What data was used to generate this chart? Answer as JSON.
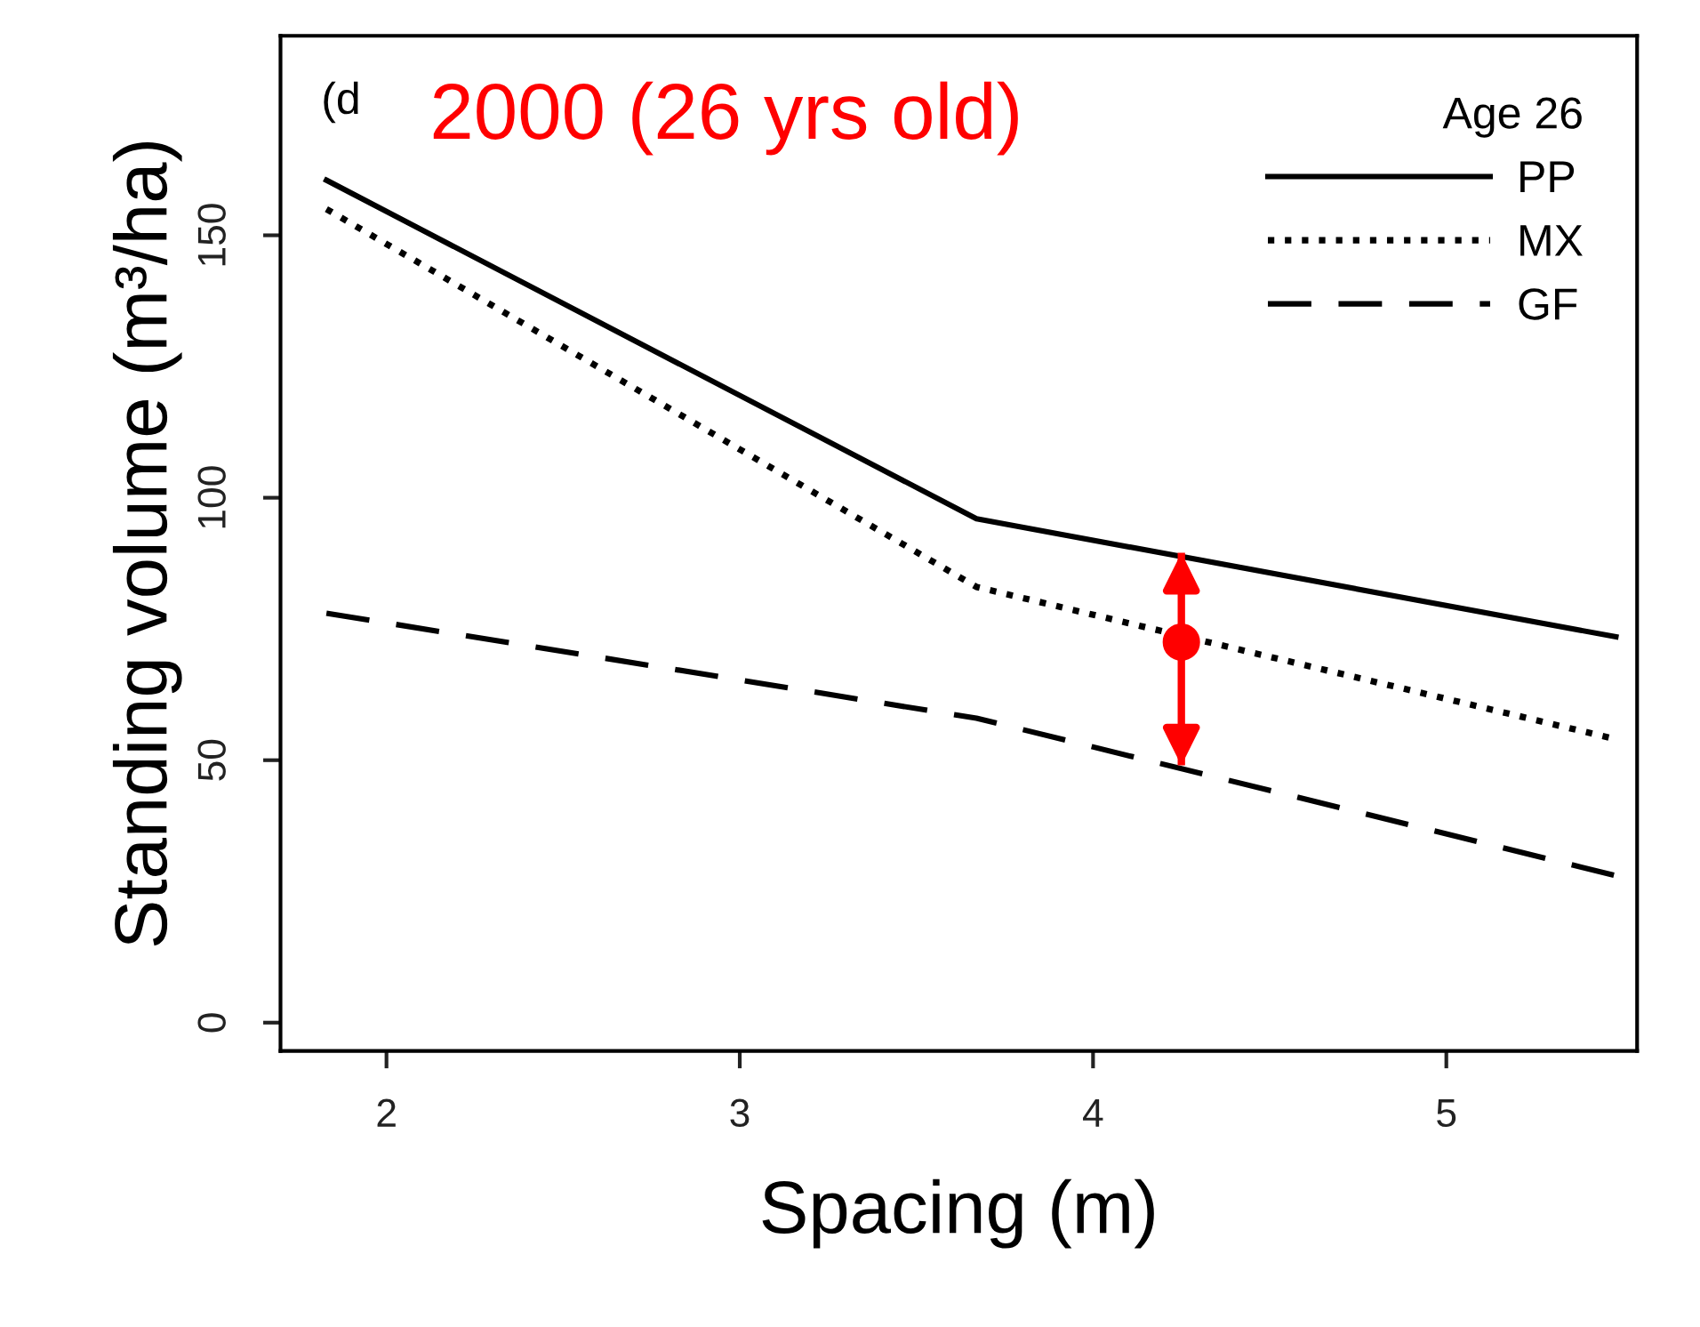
{
  "chart_data": {
    "type": "line",
    "title": "2000 (26 yrs old)",
    "xlabel": "Spacing (m)",
    "ylabel": "Standing volume (m³/ha)",
    "legend_title": "Age 26",
    "annotations": [
      "(d"
    ],
    "xlim": [
      1.7,
      5.54
    ],
    "xticks": [
      2,
      3,
      4,
      5
    ],
    "ylim": [
      -5.4,
      188
    ],
    "yticks": [
      0,
      50,
      100,
      150
    ],
    "grid": false,
    "legend": "top right",
    "marker": "none",
    "series": [
      {
        "name": "PP",
        "color": "#000000",
        "line_style": "solid",
        "x": [
          1.83,
          3.67,
          5.48
        ],
        "values": [
          160.5,
          96,
          73.5
        ]
      },
      {
        "name": "MX",
        "color": "#000000",
        "line_style": "dotted",
        "x": [
          1.83,
          3.67,
          5.48
        ],
        "values": [
          155,
          83,
          54
        ]
      },
      {
        "name": "GF",
        "color": "#000000",
        "line_style": "dashed",
        "x": [
          1.83,
          3.67,
          5.48
        ],
        "values": [
          78,
          58,
          28
        ]
      },
      {
        "type": "scatter",
        "color": "#ff0000",
        "marker": "circle",
        "x": [
          4.25
        ],
        "values": [
          72.5
        ],
        "errors": [
          [
            49,
            89.5
          ]
        ]
      }
    ]
  }
}
